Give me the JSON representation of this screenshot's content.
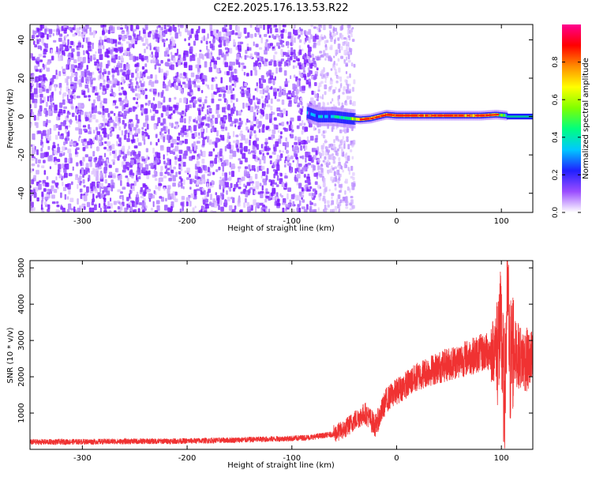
{
  "title": "C2E2.2025.176.13.53.R22",
  "chart_data": [
    {
      "type": "heatmap",
      "xlabel": "Height of straight line (km)",
      "ylabel": "Frequency (Hz)",
      "xlim": [
        -350,
        130
      ],
      "ylim": [
        -50,
        48
      ],
      "xticks": [
        -300,
        -200,
        -100,
        0,
        100
      ],
      "yticks": [
        -40,
        -20,
        0,
        20,
        40
      ],
      "noise_region_x": [
        -350,
        -75
      ],
      "sparse_region_x": [
        -75,
        -40
      ],
      "signal_band": {
        "x_start": -85,
        "x_end": 105,
        "center_frequency": 0,
        "points": [
          {
            "x": -85,
            "f": 2.0,
            "amp": 0.25
          },
          {
            "x": -75,
            "f": 0.0,
            "amp": 0.35
          },
          {
            "x": -60,
            "f": 0.0,
            "amp": 0.45
          },
          {
            "x": -45,
            "f": -1.0,
            "amp": 0.55
          },
          {
            "x": -35,
            "f": -1.5,
            "amp": 0.9
          },
          {
            "x": -25,
            "f": -1.0,
            "amp": 0.92
          },
          {
            "x": -10,
            "f": 1.0,
            "amp": 0.95
          },
          {
            "x": 0,
            "f": 0.5,
            "amp": 0.95
          },
          {
            "x": 20,
            "f": 0.5,
            "amp": 0.95
          },
          {
            "x": 40,
            "f": 0.5,
            "amp": 0.95
          },
          {
            "x": 60,
            "f": 0.5,
            "amp": 0.95
          },
          {
            "x": 80,
            "f": 0.5,
            "amp": 0.9
          },
          {
            "x": 95,
            "f": 1.0,
            "amp": 0.7
          },
          {
            "x": 105,
            "f": 0.5,
            "amp": 0.5
          }
        ]
      },
      "colorbar": {
        "label": "Normalized spectral amplitude",
        "range": [
          0,
          1
        ],
        "ticks": [
          "0.0",
          "0.2",
          "0.4",
          "0.6",
          "0.8"
        ],
        "colors": [
          "#ffffff",
          "#9a4dff",
          "#2020ff",
          "#00c8ff",
          "#00ff7f",
          "#7fff00",
          "#ffff00",
          "#ff8c00",
          "#ff0000",
          "#ff0090"
        ]
      }
    },
    {
      "type": "line",
      "xlabel": "Height of straight line (km)",
      "ylabel": "SNR (10 * v/v)",
      "xlim": [
        -350,
        130
      ],
      "ylim": [
        0,
        5200
      ],
      "xticks": [
        -300,
        -200,
        -100,
        0,
        100
      ],
      "yticks": [
        1000,
        2000,
        3000,
        4000,
        5000
      ],
      "color": "#f03232",
      "series": [
        {
          "x": [
            -350,
            -300,
            -250,
            -200,
            -150,
            -100,
            -80,
            -60,
            -50,
            -40,
            -30,
            -20,
            -10,
            0,
            10,
            20,
            30,
            40,
            50,
            60,
            70,
            80,
            90,
            95,
            100,
            103,
            106,
            108,
            110,
            115,
            120,
            130
          ],
          "y": [
            200,
            210,
            220,
            230,
            260,
            300,
            340,
            420,
            550,
            800,
            1000,
            650,
            1350,
            1600,
            1800,
            2000,
            2150,
            2250,
            2350,
            2450,
            2550,
            2650,
            2700,
            2800,
            3200,
            1200,
            4500,
            2200,
            2800,
            2600,
            2500,
            2400
          ]
        }
      ]
    }
  ]
}
